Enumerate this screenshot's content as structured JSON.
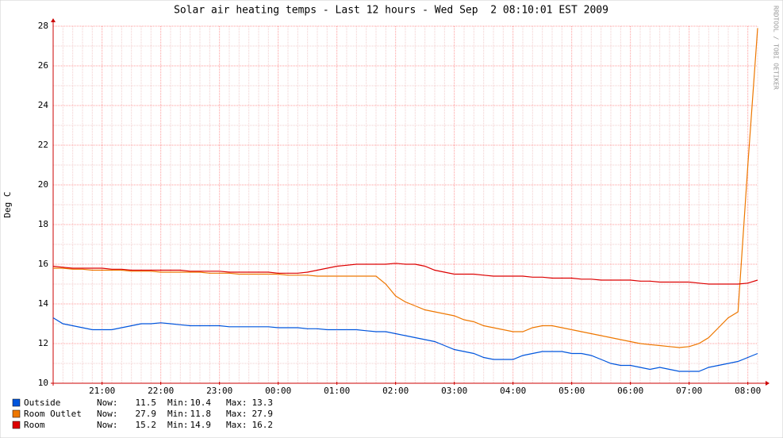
{
  "chart_data": {
    "type": "line",
    "title": "Solar air heating temps - Last 12 hours - Wed Sep  2 08:10:01 EST 2009",
    "y_label": "Deg C",
    "side_text": "RRDTOOL / TOBI OETIKER",
    "ylim": [
      10,
      28
    ],
    "yticks": [
      10,
      12,
      14,
      16,
      18,
      20,
      22,
      24,
      26,
      28
    ],
    "grid": true,
    "categories": [
      null,
      null,
      null,
      null,
      null,
      "21:00",
      null,
      null,
      null,
      null,
      null,
      "22:00",
      null,
      null,
      null,
      null,
      null,
      "23:00",
      null,
      null,
      null,
      null,
      null,
      "00:00",
      null,
      null,
      null,
      null,
      null,
      "01:00",
      null,
      null,
      null,
      null,
      null,
      "02:00",
      null,
      null,
      null,
      null,
      null,
      "03:00",
      null,
      null,
      null,
      null,
      null,
      "04:00",
      null,
      null,
      null,
      null,
      null,
      "05:00",
      null,
      null,
      null,
      null,
      null,
      "06:00",
      null,
      null,
      null,
      null,
      null,
      "07:00",
      null,
      null,
      null,
      null,
      null,
      "08:00",
      null
    ],
    "stat_labels": [
      "Now:",
      "Min:",
      "Max:"
    ],
    "series": [
      {
        "name": "Outside",
        "color": "#0055dd",
        "now": 11.5,
        "min": 10.4,
        "max": 13.3,
        "values": [
          13.3,
          13.0,
          12.9,
          12.8,
          12.7,
          12.7,
          12.7,
          12.8,
          12.9,
          13.0,
          13.0,
          13.05,
          13.0,
          12.95,
          12.9,
          12.9,
          12.9,
          12.9,
          12.85,
          12.85,
          12.85,
          12.85,
          12.85,
          12.8,
          12.8,
          12.8,
          12.75,
          12.75,
          12.7,
          12.7,
          12.7,
          12.7,
          12.65,
          12.6,
          12.6,
          12.5,
          12.4,
          12.3,
          12.2,
          12.1,
          11.9,
          11.7,
          11.6,
          11.5,
          11.3,
          11.2,
          11.2,
          11.2,
          11.4,
          11.5,
          11.6,
          11.6,
          11.6,
          11.5,
          11.5,
          11.4,
          11.2,
          11.0,
          10.9,
          10.9,
          10.8,
          10.7,
          10.8,
          10.7,
          10.6,
          10.6,
          10.6,
          10.8,
          10.9,
          11.0,
          11.1,
          11.3,
          11.5
        ]
      },
      {
        "name": "Room Outlet",
        "color": "#ee7700",
        "now": 27.9,
        "min": 11.8,
        "max": 27.9,
        "values": [
          15.8,
          15.8,
          15.75,
          15.75,
          15.7,
          15.7,
          15.7,
          15.7,
          15.65,
          15.65,
          15.65,
          15.6,
          15.6,
          15.6,
          15.6,
          15.6,
          15.55,
          15.55,
          15.55,
          15.5,
          15.5,
          15.5,
          15.5,
          15.5,
          15.45,
          15.45,
          15.45,
          15.4,
          15.4,
          15.4,
          15.4,
          15.4,
          15.4,
          15.4,
          15.0,
          14.4,
          14.1,
          13.9,
          13.7,
          13.6,
          13.5,
          13.4,
          13.2,
          13.1,
          12.9,
          12.8,
          12.7,
          12.6,
          12.6,
          12.8,
          12.9,
          12.9,
          12.8,
          12.7,
          12.6,
          12.5,
          12.4,
          12.3,
          12.2,
          12.1,
          12.0,
          11.95,
          11.9,
          11.85,
          11.8,
          11.85,
          12.0,
          12.3,
          12.8,
          13.3,
          13.6,
          21.0,
          27.9
        ]
      },
      {
        "name": "Room",
        "color": "#dd0000",
        "now": 15.2,
        "min": 14.9,
        "max": 16.2,
        "values": [
          15.9,
          15.85,
          15.8,
          15.8,
          15.8,
          15.8,
          15.75,
          15.75,
          15.7,
          15.7,
          15.7,
          15.7,
          15.7,
          15.7,
          15.65,
          15.65,
          15.65,
          15.65,
          15.6,
          15.6,
          15.6,
          15.6,
          15.6,
          15.55,
          15.55,
          15.55,
          15.6,
          15.7,
          15.8,
          15.9,
          15.95,
          16.0,
          16.0,
          16.0,
          16.0,
          16.05,
          16.0,
          16.0,
          15.9,
          15.7,
          15.6,
          15.5,
          15.5,
          15.5,
          15.45,
          15.4,
          15.4,
          15.4,
          15.4,
          15.35,
          15.35,
          15.3,
          15.3,
          15.3,
          15.25,
          15.25,
          15.2,
          15.2,
          15.2,
          15.2,
          15.15,
          15.15,
          15.1,
          15.1,
          15.1,
          15.1,
          15.05,
          15.0,
          15.0,
          15.0,
          15.0,
          15.05,
          15.2
        ]
      }
    ]
  }
}
